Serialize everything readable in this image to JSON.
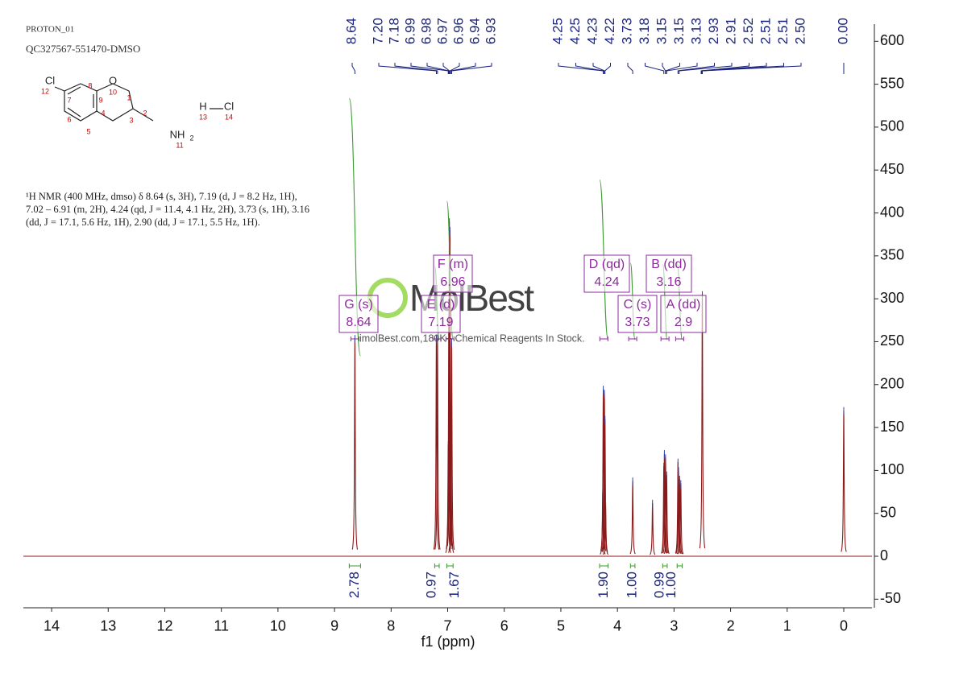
{
  "header": {
    "experiment": "PROTON_01",
    "sample": "QC327567-551470-DMSO"
  },
  "structure": {
    "labels": [
      "Cl",
      "12",
      "7",
      "8",
      "9",
      "O",
      "10",
      "1",
      "2",
      "3",
      "4",
      "5",
      "6",
      "NH",
      "2",
      "11",
      "H",
      "Cl",
      "13",
      "14"
    ]
  },
  "nmr_text": "¹H NMR (400 MHz, dmso) δ 8.64 (s, 3H), 7.19 (d, J = 8.2 Hz, 1H), 7.02 – 6.91 (m, 2H), 4.24 (qd, J = 11.4, 4.1 Hz, 2H), 3.73 (s, 1H), 3.16 (dd, J = 17.1, 5.6 Hz, 1H), 2.90 (dd, J = 17.1, 5.5 Hz, 1H).",
  "watermark": {
    "logo": "MolBest",
    "tagline": "imolBest.com,180K+ Chemical Reagents In Stock."
  },
  "chart_data": {
    "type": "nmr",
    "x_label": "f1 (ppm)",
    "color": "#8b1a1a",
    "xlim": [
      14.5,
      -0.5
    ],
    "xticks": [
      14,
      13,
      12,
      11,
      10,
      9,
      8,
      7,
      6,
      5,
      4,
      3,
      2,
      1,
      0
    ],
    "ylim": [
      -60,
      620
    ],
    "yticks": [
      -50,
      0,
      50,
      100,
      150,
      200,
      250,
      300,
      350,
      400,
      450,
      500,
      550,
      600
    ],
    "peak_labels": [
      "8.64",
      "7.20",
      "7.18",
      "6.99",
      "6.98",
      "6.97",
      "6.96",
      "6.94",
      "6.93",
      "4.25",
      "4.25",
      "4.23",
      "4.22",
      "3.73",
      "3.18",
      "3.15",
      "3.15",
      "3.13",
      "2.93",
      "2.91",
      "2.52",
      "2.51",
      "2.51",
      "2.50",
      "0.00"
    ],
    "x": [
      8.64,
      7.2,
      7.18,
      6.99,
      6.98,
      6.97,
      6.96,
      6.94,
      6.93,
      4.26,
      4.25,
      4.23,
      4.22,
      4.21,
      3.73,
      3.38,
      3.18,
      3.17,
      3.15,
      3.13,
      2.93,
      2.92,
      2.9,
      2.88,
      2.5,
      0.0
    ],
    "values": [
      254,
      254,
      254,
      130,
      280,
      390,
      380,
      130,
      250,
      75,
      195,
      190,
      160,
      65,
      88,
      62,
      105,
      120,
      115,
      95,
      110,
      100,
      90,
      85,
      305,
      170
    ],
    "integrals": {
      "x": [
        8.64,
        7.19,
        6.96,
        4.24,
        3.73,
        3.16,
        2.9
      ],
      "values": [
        2.78,
        0.97,
        1.67,
        1.9,
        1,
        0.99,
        1
      ],
      "value_labels": [
        "2.78",
        "0.97",
        "1.67",
        "1.90",
        "1.00",
        "0.99",
        "1.00"
      ]
    },
    "multiplets": [
      {
        "label": "G (s)",
        "shift": 8.64
      },
      {
        "label": "E (d)",
        "shift": 7.19
      },
      {
        "label": "F (m)",
        "shift": 6.96
      },
      {
        "label": "D (qd)",
        "shift": 4.24
      },
      {
        "label": "C (s)",
        "shift": 3.73
      },
      {
        "label": "B (dd)",
        "shift": 3.16
      },
      {
        "label": "A (dd)",
        "shift": 2.9
      }
    ]
  }
}
